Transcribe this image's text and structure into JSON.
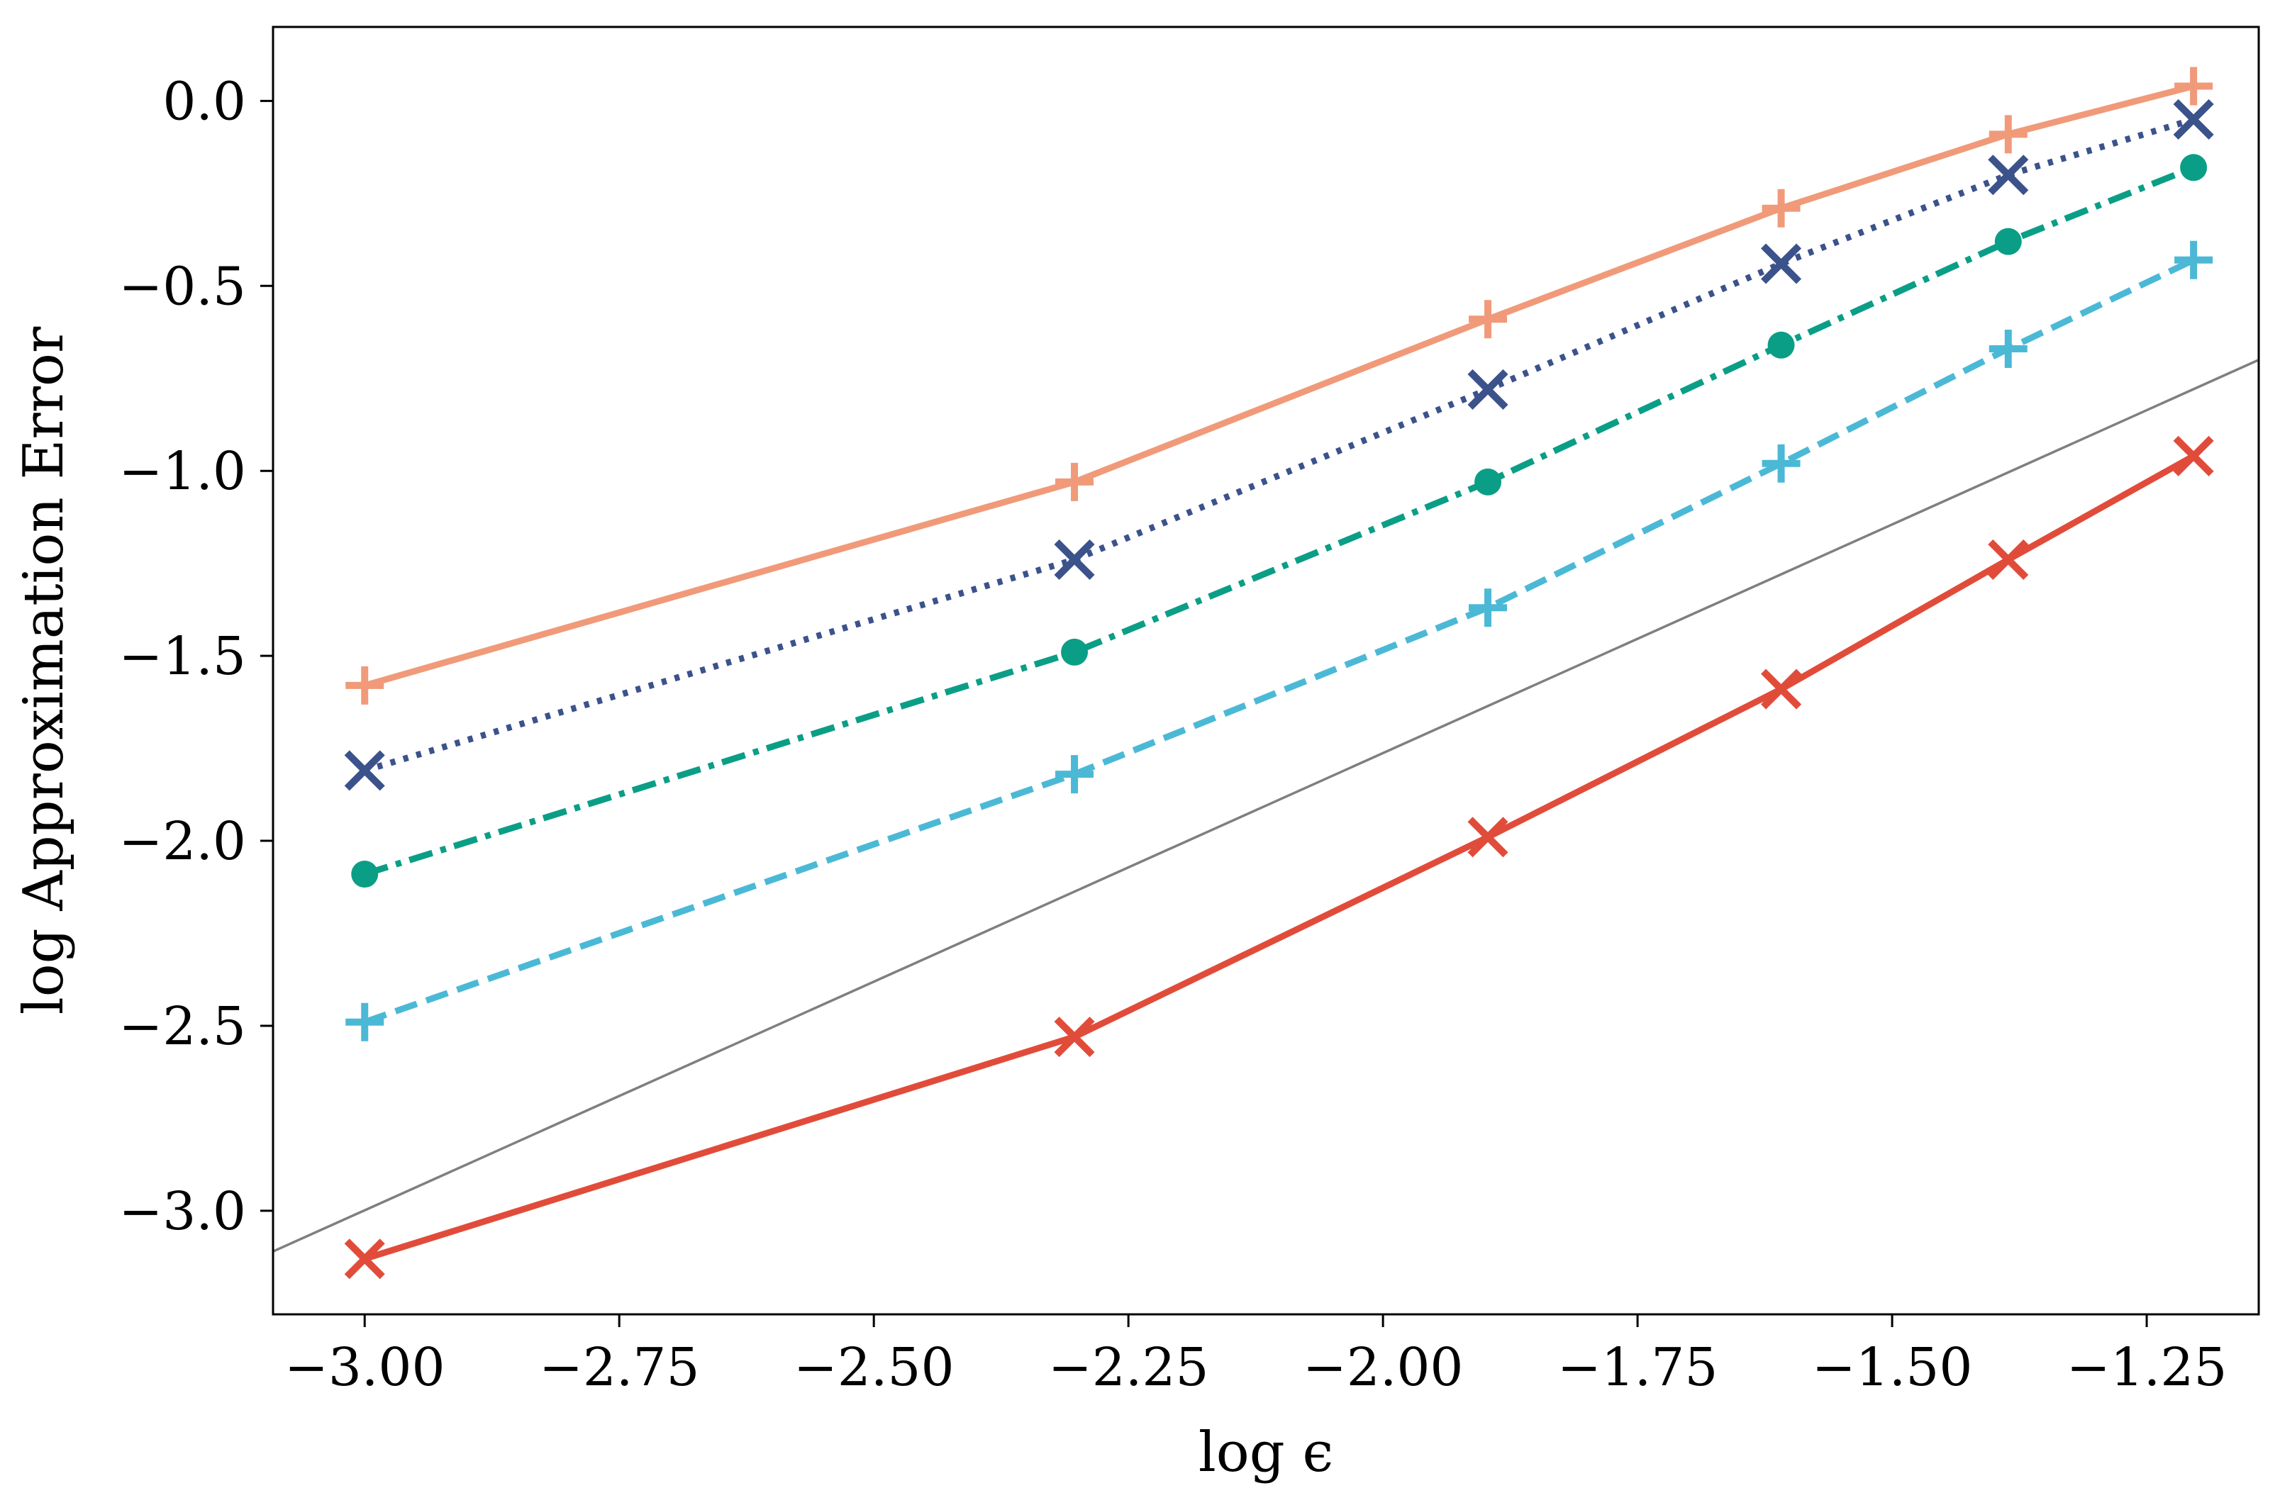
{
  "chart_data": {
    "type": "line",
    "title": "",
    "xlabel": "log ϵ",
    "ylabel": "log Approximation Error",
    "xlim": [
      -3.09,
      -1.14
    ],
    "ylim": [
      -3.28,
      0.2
    ],
    "xticks": [
      -3.0,
      -2.75,
      -2.5,
      -2.25,
      -2.0,
      -1.75,
      -1.5,
      -1.25
    ],
    "xtick_labels": [
      "−3.00",
      "−2.75",
      "−2.50",
      "−2.25",
      "−2.00",
      "−1.75",
      "−1.50",
      "−1.25"
    ],
    "yticks": [
      0.0,
      -0.5,
      -1.0,
      -1.5,
      -2.0,
      -2.5,
      -3.0
    ],
    "ytick_labels": [
      "0.0",
      "−0.5",
      "−1.0",
      "−1.5",
      "−2.0",
      "−2.5",
      "−3.0"
    ],
    "grid": false,
    "legend": "none",
    "x": [
      -3.0,
      -2.303,
      -1.897,
      -1.609,
      -1.386,
      -1.204
    ],
    "series": [
      {
        "values": [
          0.04,
          -0.09,
          -0.29,
          -0.59,
          -1.03,
          -1.58
        ],
        "x": [
          -1.204,
          -1.386,
          -1.609,
          -1.897,
          -2.303,
          -3.0
        ],
        "color": "#f09a7a",
        "style": "solid",
        "marker": "plus"
      },
      {
        "values": [
          -1.81,
          -1.24,
          -0.78,
          -0.44,
          -0.2,
          -0.05
        ],
        "color": "#3b528b",
        "style": "dotted",
        "marker": "x"
      },
      {
        "values": [
          -2.09,
          -1.49,
          -1.03,
          -0.66,
          -0.38,
          -0.18
        ],
        "color": "#0b9e86",
        "style": "dashdot",
        "marker": "circle"
      },
      {
        "values": [
          -2.49,
          -1.82,
          -1.37,
          -0.98,
          -0.67,
          -0.43
        ],
        "color": "#4bb9d6",
        "style": "dashed",
        "marker": "plus"
      },
      {
        "values": [
          -3.13,
          -2.53,
          -1.99,
          -1.59,
          -1.24,
          -0.96
        ],
        "color": "#e14c3a",
        "style": "solid",
        "marker": "x"
      }
    ],
    "reference_line": {
      "x": [
        -3.09,
        -1.14
      ],
      "y": [
        -3.11,
        -0.7
      ],
      "color": "#7f7f7f"
    }
  }
}
